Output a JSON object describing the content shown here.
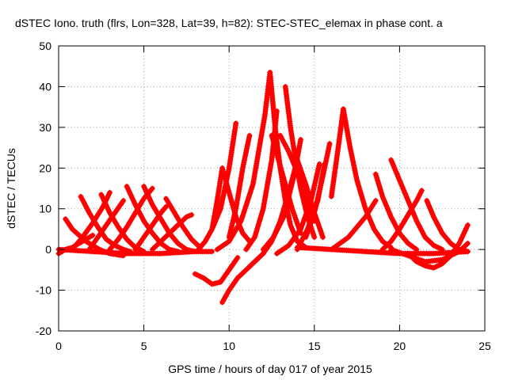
{
  "chart_data": {
    "type": "scatter",
    "title": "dSTEC Iono. truth (flrs, Lon=328, Lat=39, h=82): STEC-STEC_elemax in phase cont. a",
    "xlabel": "GPS time / hours of day 017 of year 2015",
    "ylabel": "dSTEC  / TECUs",
    "xlim": [
      0,
      25
    ],
    "ylim": [
      -20,
      50
    ],
    "x_ticks": [
      "0",
      "5",
      "10",
      "15",
      "20",
      "25"
    ],
    "y_ticks": [
      "-20",
      "-10",
      "0",
      "10",
      "20",
      "30",
      "40",
      "50"
    ],
    "grid": true,
    "marker": "+",
    "color": "#ff0000",
    "series": [
      {
        "x": [
          0.0,
          0.4,
          0.8,
          1.2,
          1.6,
          2.0
        ],
        "y": [
          -1,
          0,
          0.5,
          1.5,
          2.5,
          3.5
        ]
      },
      {
        "x": [
          0.4,
          0.8,
          1.2,
          1.6,
          2.0,
          2.4,
          3.0,
          3.8
        ],
        "y": [
          7.5,
          5,
          3.5,
          2,
          1,
          0,
          -1,
          -1.5
        ]
      },
      {
        "x": [
          1.3,
          1.8,
          2.3,
          2.8,
          3.3,
          3.8,
          4.2
        ],
        "y": [
          13,
          9,
          5.5,
          2.5,
          1,
          0,
          -0.5
        ]
      },
      {
        "x": [
          0.8,
          1.4,
          2.0,
          2.6,
          3.0
        ],
        "y": [
          0,
          3,
          6.5,
          10.5,
          14
        ]
      },
      {
        "x": [
          2.5,
          3.0,
          3.5,
          4.0,
          4.5,
          5.0
        ],
        "y": [
          13.5,
          9,
          5.5,
          2.5,
          0.5,
          -0.5
        ]
      },
      {
        "x": [
          1.8,
          2.3,
          2.8,
          3.3,
          3.8
        ],
        "y": [
          0,
          3,
          6,
          9,
          12
        ]
      },
      {
        "x": [
          4.0,
          4.5,
          5.0,
          5.5,
          6.0,
          6.5,
          7.0
        ],
        "y": [
          15.5,
          11,
          7,
          4,
          1.5,
          0,
          -0.5
        ]
      },
      {
        "x": [
          3.0,
          3.5,
          4.0,
          4.5,
          5.0,
          5.5
        ],
        "y": [
          0,
          2.5,
          5.5,
          9,
          12.5,
          15
        ]
      },
      {
        "x": [
          5.0,
          5.5,
          6.0,
          6.5,
          7.0,
          7.5,
          8.0
        ],
        "y": [
          15.5,
          11,
          7.5,
          4,
          1.5,
          0,
          -0.5
        ]
      },
      {
        "x": [
          4.5,
          5.0,
          5.5,
          6.0,
          6.3
        ],
        "y": [
          0,
          3,
          6,
          9,
          10.5
        ]
      },
      {
        "x": [
          6.3,
          6.8,
          7.3,
          7.8,
          8.3
        ],
        "y": [
          12.5,
          9,
          5.5,
          2.5,
          0.5
        ]
      },
      {
        "x": [
          5.5,
          6.0,
          6.5,
          7.0,
          7.5,
          7.8
        ],
        "y": [
          0,
          2,
          4,
          6,
          8,
          8.5
        ]
      },
      {
        "x": [
          0.0,
          2.0,
          4.0,
          6.0,
          8.0,
          9.0
        ],
        "y": [
          0,
          -0.5,
          -1,
          -1,
          -0.5,
          -0.5
        ]
      },
      {
        "x": [
          8.0,
          8.5,
          9.0,
          9.5,
          10.0,
          10.5
        ],
        "y": [
          -6,
          -7,
          -8.5,
          -8,
          -5,
          -2
        ]
      },
      {
        "x": [
          9.6,
          10.0,
          10.5,
          11.0,
          11.5,
          12.0
        ],
        "y": [
          -13,
          -10,
          -7,
          -5,
          -3,
          -1
        ]
      },
      {
        "x": [
          8.2,
          8.6,
          9.0,
          9.5,
          10.0,
          10.4
        ],
        "y": [
          0,
          2,
          5,
          10,
          20,
          31
        ]
      },
      {
        "x": [
          9.0,
          9.3,
          9.6,
          10.0,
          10.4,
          10.8,
          11.2
        ],
        "y": [
          5,
          12,
          20,
          14,
          8,
          4,
          2
        ]
      },
      {
        "x": [
          10.0,
          10.4,
          10.8,
          11.2
        ],
        "y": [
          3,
          10,
          20,
          28
        ]
      },
      {
        "x": [
          9.3,
          10.0,
          10.7,
          11.4,
          12.1,
          12.4
        ],
        "y": [
          0,
          2,
          7,
          16,
          33,
          43.5
        ]
      },
      {
        "x": [
          12.4,
          12.7,
          13.0,
          13.3,
          13.6,
          14.0,
          14.5
        ],
        "y": [
          43.5,
          30,
          20,
          12,
          6,
          2,
          0.5
        ]
      },
      {
        "x": [
          11.0,
          11.5,
          12.0,
          12.5,
          12.8
        ],
        "y": [
          0,
          3,
          10,
          22,
          34
        ]
      },
      {
        "x": [
          12.5,
          12.9,
          13.3,
          13.7,
          14.2
        ],
        "y": [
          28,
          22,
          16,
          10,
          4
        ]
      },
      {
        "x": [
          13.3,
          13.6,
          13.9,
          14.2,
          14.6,
          15.0
        ],
        "y": [
          40,
          30,
          22,
          15,
          8,
          3
        ]
      },
      {
        "x": [
          12.0,
          12.6,
          13.2,
          13.8,
          14.2
        ],
        "y": [
          0,
          3,
          8,
          18,
          27
        ]
      },
      {
        "x": [
          13.0,
          13.5,
          14.0,
          14.5,
          15.0
        ],
        "y": [
          28,
          24,
          19,
          13,
          7
        ]
      },
      {
        "x": [
          12.0,
          12.5,
          13.0,
          13.5,
          14.0
        ],
        "y": [
          -1,
          2,
          7,
          14,
          22
        ]
      },
      {
        "x": [
          14.5,
          15.0,
          15.5,
          15.9
        ],
        "y": [
          3,
          9,
          18,
          26
        ]
      },
      {
        "x": [
          14.0,
          14.6,
          15.2,
          15.6
        ],
        "y": [
          0,
          5,
          12,
          21
        ]
      },
      {
        "x": [
          14.0,
          14.5,
          15.0,
          15.5
        ],
        "y": [
          22,
          16,
          9,
          3
        ]
      },
      {
        "x": [
          12.8,
          13.5,
          14.2,
          14.8,
          15.3
        ],
        "y": [
          -1,
          1,
          5,
          12,
          21
        ]
      },
      {
        "x": [
          16.0,
          16.4,
          16.7
        ],
        "y": [
          13,
          25,
          34.5
        ]
      },
      {
        "x": [
          16.7,
          17.1,
          17.5,
          18.0,
          18.5,
          19.0,
          19.5
        ],
        "y": [
          34.5,
          25,
          17,
          10,
          5,
          2,
          0.5
        ]
      },
      {
        "x": [
          16.0,
          17.0,
          18.0,
          18.6
        ],
        "y": [
          0,
          3,
          8,
          12
        ]
      },
      {
        "x": [
          18.6,
          19.0,
          19.5,
          20.0,
          20.5,
          21.0
        ],
        "y": [
          18.5,
          13,
          8,
          4,
          1.5,
          0
        ]
      },
      {
        "x": [
          19.5,
          20.0,
          20.5,
          21.0,
          21.5,
          22.0,
          22.5
        ],
        "y": [
          22,
          17,
          12,
          7,
          3,
          1,
          0
        ]
      },
      {
        "x": [
          19.0,
          19.5,
          20.0,
          20.5,
          21.0,
          21.3
        ],
        "y": [
          0,
          2,
          5,
          8.5,
          12,
          14.5
        ]
      },
      {
        "x": [
          21.6,
          22.0,
          22.5,
          23.0,
          23.5,
          24.0
        ],
        "y": [
          12,
          8,
          4,
          1.5,
          0,
          -0.5
        ]
      },
      {
        "x": [
          20.5,
          21.0,
          21.5,
          22.0,
          22.5,
          23.0,
          23.5,
          24.0
        ],
        "y": [
          -1,
          -3,
          -4,
          -4.5,
          -3.5,
          -1.5,
          1.5,
          6
        ]
      },
      {
        "x": [
          19.5,
          20.5,
          21.5,
          22.5,
          23.5,
          24.0
        ],
        "y": [
          0,
          -1.5,
          -3,
          -2.5,
          -0.5,
          1.5
        ]
      },
      {
        "x": [
          14.0,
          16.0,
          18.0,
          20.0,
          22.0,
          24.0
        ],
        "y": [
          0.5,
          0,
          -0.5,
          -1,
          -1,
          -0.5
        ]
      }
    ]
  }
}
